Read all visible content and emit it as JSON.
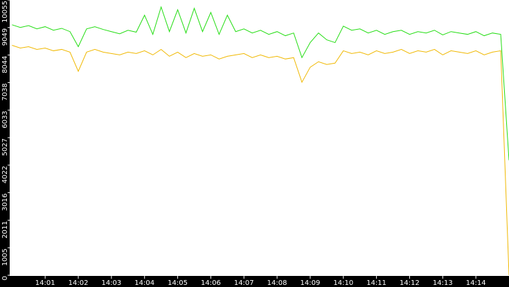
{
  "chart_data": {
    "type": "line",
    "x": [
      840,
      840.25,
      840.5,
      840.75,
      841,
      841.25,
      841.5,
      841.75,
      842,
      842.25,
      842.5,
      842.75,
      843,
      843.25,
      843.5,
      843.75,
      844,
      844.25,
      844.5,
      844.75,
      845,
      845.25,
      845.5,
      845.75,
      846,
      846.25,
      846.5,
      846.75,
      847,
      847.25,
      847.5,
      847.75,
      848,
      848.25,
      848.5,
      848.75,
      849,
      849.25,
      849.5,
      849.75,
      850,
      850.25,
      850.5,
      850.75,
      851,
      851.25,
      851.5,
      851.75,
      852,
      852.25,
      852.5,
      852.75,
      853,
      853.25,
      853.5,
      853.75,
      854,
      854.25,
      854.5,
      854.75,
      855
    ],
    "series": [
      {
        "color": "#22dd11",
        "values": [
          9150,
          9050,
          9120,
          9000,
          9080,
          8950,
          9020,
          8900,
          8350,
          9000,
          9080,
          8980,
          8900,
          8820,
          8950,
          8880,
          9500,
          8800,
          9800,
          8900,
          9700,
          8850,
          9750,
          8900,
          9600,
          8800,
          9500,
          8900,
          9000,
          8850,
          8950,
          8800,
          8900,
          8750,
          8850,
          7950,
          8500,
          8850,
          8600,
          8500,
          9100,
          8950,
          9000,
          8850,
          8950,
          8800,
          8900,
          8950,
          8800,
          8900,
          8850,
          8950,
          8780,
          8900,
          8850,
          8800,
          8900,
          8750,
          8850,
          8800,
          4200
        ]
      },
      {
        "color": "#f0b800",
        "values": [
          8400,
          8300,
          8350,
          8250,
          8300,
          8200,
          8250,
          8150,
          7450,
          8150,
          8250,
          8150,
          8100,
          8050,
          8150,
          8100,
          8200,
          8050,
          8250,
          8000,
          8150,
          7950,
          8100,
          8000,
          8050,
          7900,
          8000,
          8050,
          8100,
          7950,
          8050,
          7950,
          8000,
          7900,
          7950,
          7050,
          7600,
          7800,
          7700,
          7750,
          8200,
          8100,
          8150,
          8050,
          8200,
          8100,
          8150,
          8250,
          8100,
          8200,
          8150,
          8250,
          8050,
          8200,
          8150,
          8100,
          8200,
          8050,
          8150,
          8200,
          0
        ]
      }
    ],
    "xlim": [
      839.93,
      855
    ],
    "xticks": [
      {
        "value": 841,
        "label": "14:01"
      },
      {
        "value": 842,
        "label": "14:02"
      },
      {
        "value": 843,
        "label": "14:03"
      },
      {
        "value": 844,
        "label": "14:04"
      },
      {
        "value": 845,
        "label": "14:05"
      },
      {
        "value": 846,
        "label": "14:06"
      },
      {
        "value": 847,
        "label": "14:07"
      },
      {
        "value": 848,
        "label": "14:08"
      },
      {
        "value": 849,
        "label": "14:09"
      },
      {
        "value": 850,
        "label": "14:10"
      },
      {
        "value": 851,
        "label": "14:11"
      },
      {
        "value": 852,
        "label": "14:12"
      },
      {
        "value": 853,
        "label": "14:13"
      },
      {
        "value": 854,
        "label": "14:14"
      }
    ],
    "ylim": [
      0,
      10055
    ],
    "yticks": [
      0,
      1005,
      2011,
      3016,
      4022,
      5027,
      6033,
      7038,
      8044,
      9049,
      10055
    ]
  }
}
